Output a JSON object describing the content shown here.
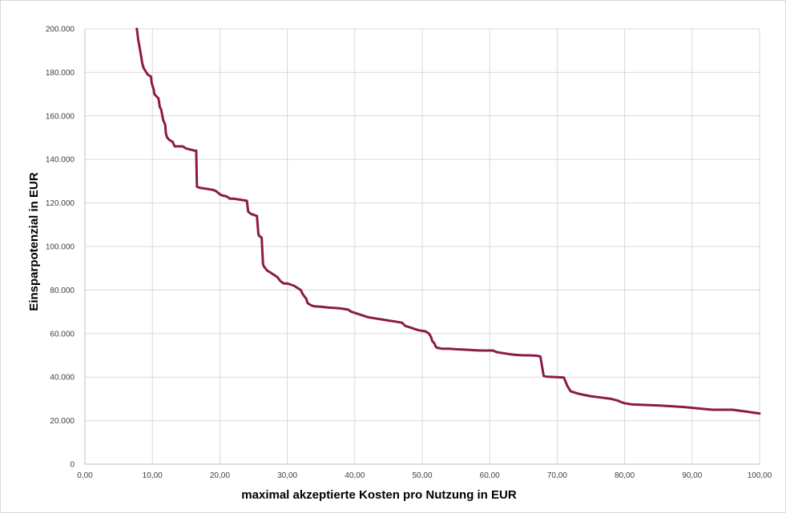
{
  "chart_data": {
    "type": "line",
    "title": "",
    "xlabel": "maximal akzeptierte Kosten pro Nutzung in EUR",
    "ylabel": "Einsparpotenzial in EUR",
    "xlim": [
      0,
      100
    ],
    "ylim": [
      0,
      200000
    ],
    "x_ticks": [
      "0,00",
      "10,00",
      "20,00",
      "30,00",
      "40,00",
      "50,00",
      "60,00",
      "70,00",
      "80,00",
      "90,00",
      "100,00"
    ],
    "y_ticks": [
      "0",
      "20.000",
      "40.000",
      "60.000",
      "80.000",
      "100.000",
      "120.000",
      "140.000",
      "160.000",
      "180.000",
      "200.000"
    ],
    "grid": true,
    "legend": "none",
    "color": "#8b1a4a",
    "series": [
      {
        "x": [
          7.7,
          7.9,
          8.3,
          8.5,
          8.7,
          9.1,
          9.3,
          9.8,
          9.9,
          10.2,
          10.3,
          10.9,
          11.1,
          11.3,
          11.6,
          11.9,
          12.0,
          12.2,
          12.5,
          13.0,
          13.3,
          14.5,
          15.0,
          16.3,
          16.5,
          16.6,
          17.0,
          18.0,
          19.0,
          19.4,
          20.0,
          20.3,
          21.0,
          21.5,
          22.0,
          23.0,
          24.0,
          24.2,
          24.6,
          25.5,
          25.7,
          25.8,
          26.2,
          26.3,
          26.4,
          26.5,
          27.0,
          27.5,
          28.5,
          29.0,
          29.5,
          30.0,
          31.0,
          31.5,
          32.0,
          32.3,
          32.8,
          33.0,
          33.5,
          34.0,
          35.0,
          36.0,
          37.0,
          38.0,
          39.0,
          39.5,
          40.5,
          41.0,
          42.0,
          43.0,
          44.0,
          45.0,
          46.0,
          47.0,
          47.5,
          48.0,
          49.0,
          49.5,
          50.5,
          51.0,
          51.3,
          51.5,
          51.8,
          52.0,
          52.2,
          53.0,
          54.0,
          55.0,
          56.0,
          57.0,
          58.0,
          59.0,
          60.5,
          61.0,
          62.0,
          63.0,
          64.0,
          65.0,
          66.0,
          67.0,
          67.5,
          68.0,
          68.5,
          70.0,
          71.0,
          71.5,
          72.0,
          73.0,
          74.0,
          75.0,
          76.0,
          78.0,
          79.0,
          79.5,
          80.0,
          81.0,
          83.0,
          85.0,
          87.0,
          89.0,
          91.0,
          93.0,
          94.0,
          96.0,
          97.0,
          98.0,
          99.0,
          100.0
        ],
        "y": [
          200000,
          195000,
          188000,
          184000,
          182000,
          180000,
          179000,
          178000,
          175000,
          172000,
          170000,
          168000,
          164000,
          163000,
          158000,
          156000,
          152000,
          150000,
          149000,
          148000,
          146000,
          146000,
          145000,
          144000,
          144000,
          127500,
          127000,
          126500,
          126000,
          125500,
          124000,
          123500,
          123000,
          122000,
          122000,
          121500,
          121000,
          116000,
          115000,
          114000,
          106000,
          105000,
          104000,
          98000,
          92000,
          91000,
          89000,
          88000,
          86000,
          84000,
          83000,
          83000,
          82000,
          81000,
          80000,
          78000,
          76000,
          74000,
          73000,
          72500,
          72300,
          72000,
          71800,
          71500,
          71000,
          70000,
          69000,
          68500,
          67500,
          67000,
          66500,
          66000,
          65500,
          65000,
          63500,
          63000,
          62000,
          61500,
          61000,
          60000,
          58500,
          56500,
          55500,
          54000,
          53500,
          53000,
          53000,
          52800,
          52700,
          52500,
          52300,
          52200,
          52200,
          51500,
          51000,
          50500,
          50200,
          50000,
          50000,
          49800,
          49500,
          40500,
          40200,
          40000,
          39800,
          36000,
          33500,
          32500,
          31800,
          31200,
          30800,
          30000,
          29200,
          28500,
          28000,
          27500,
          27200,
          27000,
          26600,
          26200,
          25600,
          25000,
          25000,
          25000,
          24600,
          24200,
          23700,
          23300
        ]
      }
    ]
  }
}
